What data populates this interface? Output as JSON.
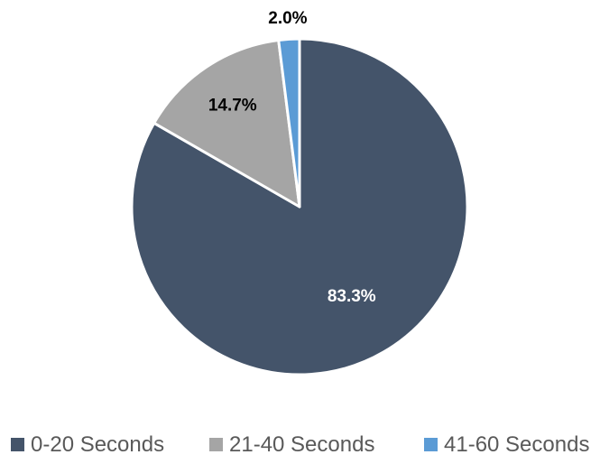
{
  "chart_data": {
    "type": "pie",
    "title": "",
    "slices": [
      {
        "label": "0-20 Seconds",
        "value": 83.3,
        "display": "83.3%",
        "color": "#44546a",
        "label_color": "#ffffff"
      },
      {
        "label": "21-40 Seconds",
        "value": 14.7,
        "display": "14.7%",
        "color": "#a5a5a5",
        "label_color": "#000000"
      },
      {
        "label": "41-60 Seconds",
        "value": 2.0,
        "display": "2.0%",
        "color": "#5b9bd5",
        "label_color": "#000000"
      }
    ],
    "start_angle": "12 o'clock",
    "direction": "clockwise",
    "legend_position": "bottom"
  }
}
